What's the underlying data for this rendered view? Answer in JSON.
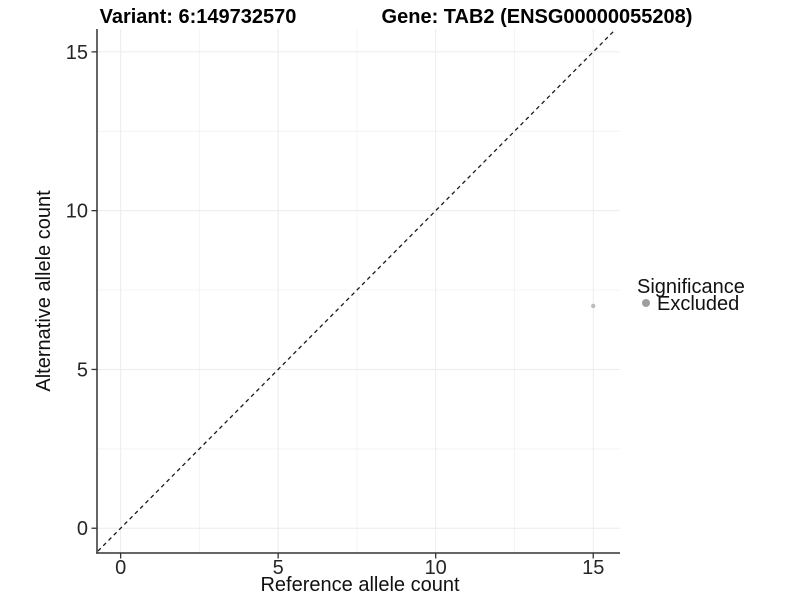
{
  "header": {
    "variant_title": "Variant: 6:149732570",
    "gene_title": "Gene: TAB2 (ENSG00000055208)"
  },
  "chart_data": {
    "type": "scatter",
    "title_left": "Variant: 6:149732570",
    "title_right": "Gene: TAB2 (ENSG00000055208)",
    "xlabel": "Reference allele count",
    "ylabel": "Alternative allele count",
    "xlim": [
      -0.75,
      15.85
    ],
    "ylim": [
      -0.78,
      15.72
    ],
    "x_ticks": [
      0,
      5,
      10,
      15
    ],
    "y_ticks": [
      0,
      5,
      10,
      15
    ],
    "x_minor_ticks": [
      2.5,
      7.5,
      12.5
    ],
    "y_minor_ticks": [
      2.5,
      7.5,
      12.5
    ],
    "grid": "major+minor",
    "points": [
      {
        "x": 15,
        "y": 7,
        "series": "Excluded",
        "color": "#bcbcbc",
        "radius": 2.2
      }
    ],
    "reference_line": {
      "type": "identity y=x",
      "from": [
        -0.72,
        -0.72
      ],
      "to": [
        15.7,
        15.7
      ],
      "style": "dashed",
      "color": "#1a1a1a"
    },
    "legend": {
      "title": "Significance",
      "position": "right",
      "items": [
        {
          "label": "Excluded",
          "color": "#9e9e9e"
        }
      ]
    }
  },
  "colors": {
    "background": "#ffffff",
    "grid_major": "#ececec",
    "grid_minor": "#f4f4f4",
    "axis_line": "#333333",
    "tick_mark": "#333333"
  }
}
